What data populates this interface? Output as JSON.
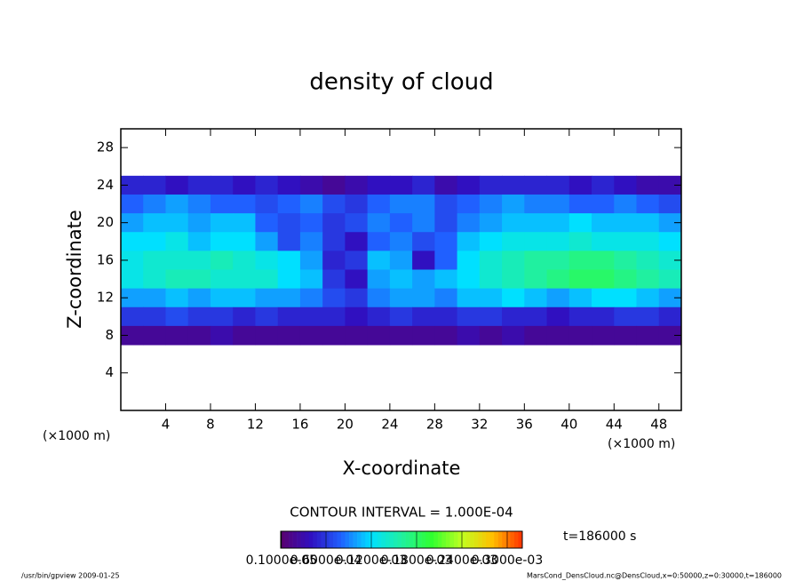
{
  "chart_data": {
    "type": "heatmap",
    "title": "density of cloud",
    "xlabel": "X-coordinate",
    "ylabel": "Z-coordinate",
    "x_unit": "(×1000 m)",
    "y_unit": "(×1000 m)",
    "annotation": "CONTOUR INTERVAL = 1.000E-04",
    "time_label": "t=186000 s",
    "footer_left": "/usr/bin/gpview  2009-01-25",
    "footer_right": "MarsCond_DensCloud.nc@DensCloud,x=0:50000,z=0:30000,t=186000",
    "xlim": [
      0,
      50
    ],
    "ylim": [
      0,
      30
    ],
    "xticks": [
      4,
      8,
      12,
      16,
      20,
      24,
      28,
      32,
      36,
      40,
      44,
      48
    ],
    "yticks": [
      4,
      8,
      12,
      16,
      20,
      24,
      28
    ],
    "x": [
      1,
      3,
      5,
      7,
      9,
      11,
      13,
      15,
      17,
      19,
      21,
      23,
      25,
      27,
      29,
      31,
      33,
      35,
      37,
      39,
      41,
      43,
      45,
      47,
      49
    ],
    "z": [
      24,
      22,
      20,
      18,
      16,
      14,
      12,
      10,
      8
    ],
    "values": [
      [
        5e-05,
        5e-05,
        4e-05,
        5e-05,
        5e-05,
        4e-05,
        5e-05,
        4e-05,
        3e-05,
        2e-05,
        3e-05,
        4e-05,
        4e-05,
        5e-05,
        3e-05,
        4e-05,
        5e-05,
        5e-05,
        5e-05,
        5e-05,
        4e-05,
        5e-05,
        4e-05,
        3e-05,
        3e-05
      ],
      [
        8e-05,
        9e-05,
        0.0001,
        9e-05,
        8e-05,
        8e-05,
        7e-05,
        8e-05,
        9e-05,
        7e-05,
        6e-05,
        8e-05,
        9e-05,
        9e-05,
        7e-05,
        8e-05,
        9e-05,
        0.0001,
        9e-05,
        9e-05,
        8e-05,
        8e-05,
        9e-05,
        8e-05,
        7e-05
      ],
      [
        0.0001,
        0.00011,
        0.00011,
        0.0001,
        0.00011,
        0.00011,
        8e-05,
        7e-05,
        8e-05,
        6e-05,
        7e-05,
        9e-05,
        8e-05,
        9e-05,
        7e-05,
        9e-05,
        0.0001,
        0.00011,
        0.00011,
        0.00011,
        0.00012,
        0.00011,
        0.00011,
        0.00011,
        0.0001
      ],
      [
        0.00012,
        0.00012,
        0.00013,
        0.00011,
        0.00012,
        0.00012,
        0.0001,
        7e-05,
        9e-05,
        6e-05,
        4e-05,
        8e-05,
        9e-05,
        7e-05,
        8e-05,
        0.00011,
        0.00012,
        0.00013,
        0.00013,
        0.00013,
        0.00014,
        0.00013,
        0.00013,
        0.00013,
        0.00012
      ],
      [
        0.00013,
        0.00014,
        0.00014,
        0.00014,
        0.00015,
        0.00014,
        0.00013,
        0.00012,
        0.0001,
        5e-05,
        6e-05,
        0.00011,
        0.0001,
        4e-05,
        8e-05,
        0.00012,
        0.00014,
        0.00015,
        0.00016,
        0.00016,
        0.00017,
        0.00017,
        0.00016,
        0.00015,
        0.00014
      ],
      [
        0.00013,
        0.00014,
        0.00015,
        0.00015,
        0.00014,
        0.00014,
        0.00014,
        0.00012,
        0.00011,
        6e-05,
        4e-05,
        0.0001,
        0.00011,
        0.0001,
        0.00011,
        0.00012,
        0.00014,
        0.00015,
        0.00016,
        0.00017,
        0.00018,
        0.00018,
        0.00017,
        0.00016,
        0.00015
      ],
      [
        0.0001,
        0.0001,
        0.00011,
        0.0001,
        0.00011,
        0.00011,
        0.0001,
        0.0001,
        9e-05,
        7e-05,
        6e-05,
        9e-05,
        0.0001,
        0.0001,
        9e-05,
        0.00011,
        0.00011,
        0.00012,
        0.00011,
        0.0001,
        0.00011,
        0.00012,
        0.00012,
        0.00011,
        0.0001
      ],
      [
        6e-05,
        6e-05,
        7e-05,
        6e-05,
        6e-05,
        5e-05,
        6e-05,
        5e-05,
        5e-05,
        5e-05,
        4e-05,
        5e-05,
        6e-05,
        5e-05,
        5e-05,
        6e-05,
        6e-05,
        5e-05,
        5e-05,
        4e-05,
        5e-05,
        5e-05,
        6e-05,
        6e-05,
        5e-05
      ],
      [
        2e-05,
        2e-05,
        2e-05,
        2e-05,
        3e-05,
        2e-05,
        2e-05,
        2e-05,
        2e-05,
        2e-05,
        2e-05,
        2e-05,
        2e-05,
        2e-05,
        2e-05,
        3e-05,
        2e-05,
        3e-05,
        2e-05,
        2e-05,
        2e-05,
        2e-05,
        2e-05,
        2e-05,
        2e-05
      ]
    ],
    "clim": [
      0,
      0.00032
    ],
    "colormap": [
      "#5a006e",
      "#3010c0",
      "#2060ff",
      "#00e0ff",
      "#20f0a0",
      "#30ff30",
      "#c0ff20",
      "#ffc000",
      "#ff3000"
    ],
    "cticks": [
      {
        "value": 1e-06,
        "label": "0.1000e-05"
      },
      {
        "value": 6e-05,
        "label": "0.6000e-04"
      },
      {
        "value": 0.00012,
        "label": "0.1200e-03"
      },
      {
        "value": 0.00018,
        "label": "0.1800e-03"
      },
      {
        "value": 0.00024,
        "label": "0.2400e-03"
      },
      {
        "value": 0.0003,
        "label": "0.3000e-03"
      }
    ]
  }
}
